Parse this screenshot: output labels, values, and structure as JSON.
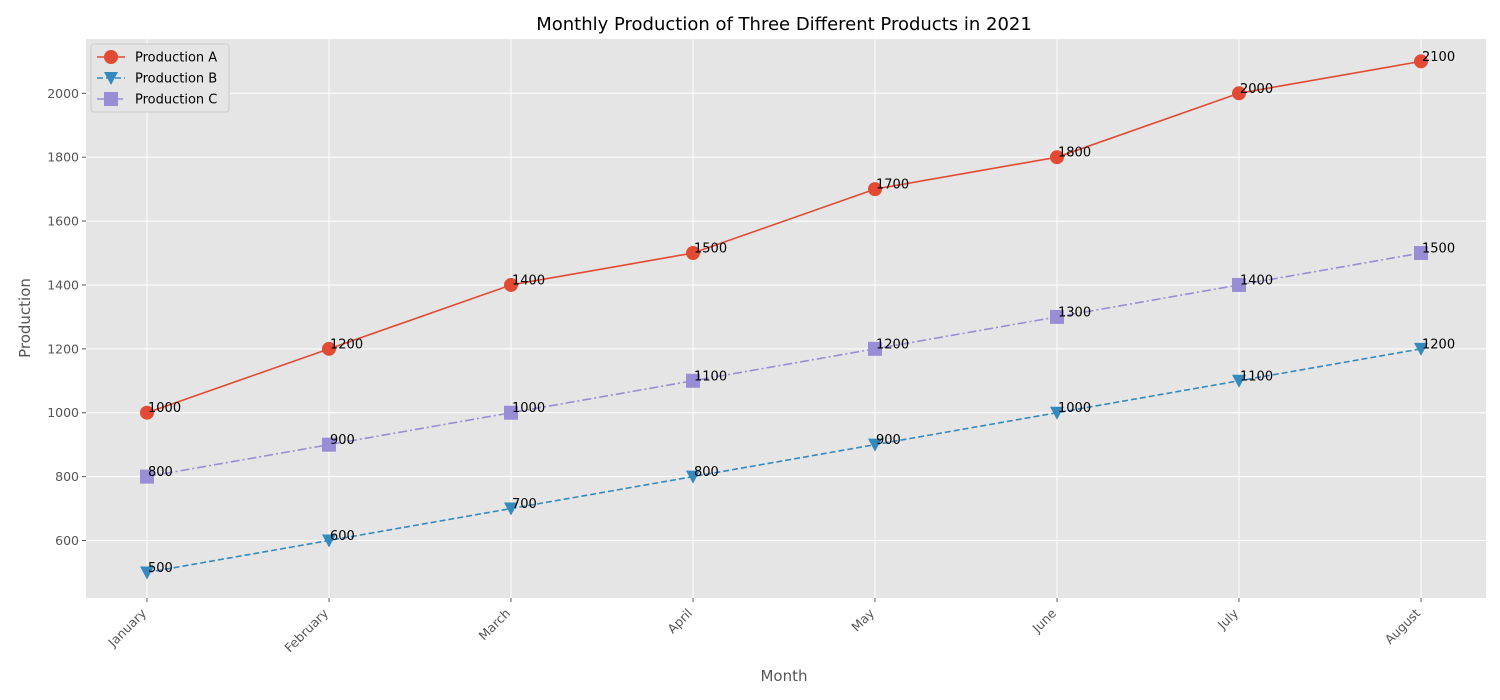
{
  "chart_data": {
    "type": "line",
    "title": "Monthly Production of Three Different Products in 2021",
    "xlabel": "Month",
    "ylabel": "Production",
    "categories": [
      "January",
      "February",
      "March",
      "April",
      "May",
      "June",
      "July",
      "August"
    ],
    "ylim": [
      420,
      2170
    ],
    "yticks": [
      600,
      800,
      1000,
      1200,
      1400,
      1600,
      1800,
      2000
    ],
    "grid": true,
    "legend_position": "top-left",
    "series": [
      {
        "name": "Production A",
        "values": [
          1000,
          1200,
          1400,
          1500,
          1700,
          1800,
          2000,
          2100
        ],
        "color": "#E24A33",
        "marker": "circle",
        "line_style": "solid"
      },
      {
        "name": "Production B",
        "values": [
          500,
          600,
          700,
          800,
          900,
          1000,
          1100,
          1200
        ],
        "color": "#348ABD",
        "marker": "triangle-down",
        "line_style": "dashed"
      },
      {
        "name": "Production C",
        "values": [
          800,
          900,
          1000,
          1100,
          1200,
          1300,
          1400,
          1500
        ],
        "color": "#988ED5",
        "marker": "square",
        "line_style": "dashdot"
      }
    ]
  }
}
